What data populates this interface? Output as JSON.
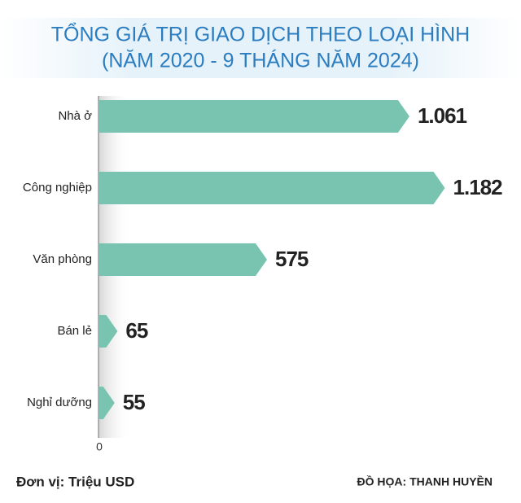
{
  "chart_data": {
    "type": "bar",
    "orientation": "horizontal",
    "title": [
      "TỔNG GIÁ TRỊ GIAO DỊCH THEO LOẠI HÌNH",
      "(NĂM 2020 - 9 THÁNG NĂM 2024)"
    ],
    "categories": [
      "Nhà ở",
      "Công nghiệp",
      "Văn phòng",
      "Bán lẻ",
      "Nghỉ dưỡng"
    ],
    "values": [
      1061,
      1182,
      575,
      65,
      55
    ],
    "value_labels": [
      "1.061",
      "1.182",
      "575",
      "65",
      "55"
    ],
    "color": "#78c4b0",
    "xlim": [
      0,
      1400
    ],
    "xticks": [
      0
    ],
    "unit_note": "Đơn vị: Triệu USD",
    "credit": "ĐỒ HỌA: THANH HUYỀN"
  }
}
